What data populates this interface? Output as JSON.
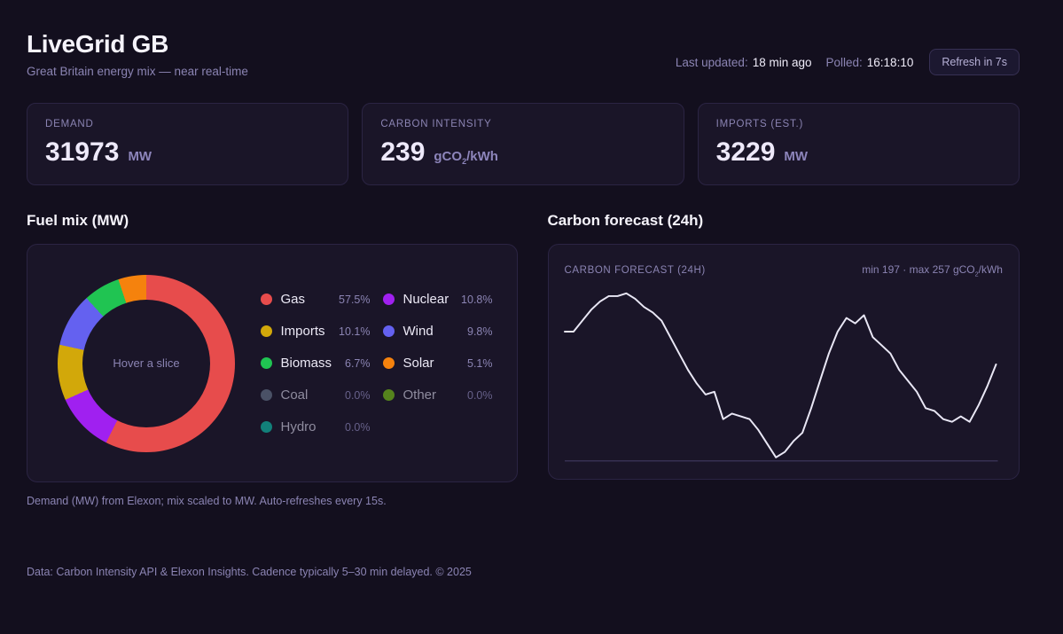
{
  "header": {
    "title": "LiveGrid GB",
    "subtitle": "Great Britain energy mix — near real-time",
    "last_updated_label": "Last updated:",
    "last_updated_value": "18 min ago",
    "polled_label": "Polled:",
    "polled_value": "16:18:10",
    "refresh_button": "Refresh in 7s"
  },
  "stats": [
    {
      "label": "DEMAND",
      "value": "31973",
      "unit_pre": "MW",
      "unit_sub": "",
      "unit_post": ""
    },
    {
      "label": "CARBON INTENSITY",
      "value": "239",
      "unit_pre": "gCO",
      "unit_sub": "2",
      "unit_post": "/kWh"
    },
    {
      "label": "IMPORTS (EST.)",
      "value": "3229",
      "unit_pre": "MW",
      "unit_sub": "",
      "unit_post": ""
    }
  ],
  "chart_data": [
    {
      "type": "pie",
      "title": "Fuel mix (MW)",
      "center_label": "Hover a slice",
      "legend_position": "right",
      "slices": [
        {
          "name": "Gas",
          "value": 57.5,
          "pct_label": "57.5%",
          "color": "#e74c4c",
          "dimmed": false
        },
        {
          "name": "Nuclear",
          "value": 10.8,
          "pct_label": "10.8%",
          "color": "#a020f0",
          "dimmed": false
        },
        {
          "name": "Imports",
          "value": 10.1,
          "pct_label": "10.1%",
          "color": "#d2a80a",
          "dimmed": false
        },
        {
          "name": "Wind",
          "value": 9.8,
          "pct_label": "9.8%",
          "color": "#6461f0",
          "dimmed": false
        },
        {
          "name": "Biomass",
          "value": 6.7,
          "pct_label": "6.7%",
          "color": "#20c452",
          "dimmed": false
        },
        {
          "name": "Solar",
          "value": 5.1,
          "pct_label": "5.1%",
          "color": "#f5820d",
          "dimmed": false
        },
        {
          "name": "Coal",
          "value": 0.0,
          "pct_label": "0.0%",
          "color": "#4a5166",
          "dimmed": true
        },
        {
          "name": "Other",
          "value": 0.0,
          "pct_label": "0.0%",
          "color": "#55831d",
          "dimmed": true
        },
        {
          "name": "Hydro",
          "value": 0.0,
          "pct_label": "0.0%",
          "color": "#12807a",
          "dimmed": true
        }
      ]
    },
    {
      "type": "line",
      "title": "Carbon forecast (24h)",
      "panel_label": "CARBON FORECAST (24H)",
      "annotation_pre": "min 197 · max 257 gCO",
      "annotation_sub": "2",
      "annotation_post": "/kWh",
      "ylim": [
        197,
        257
      ],
      "x_range_hours": 24,
      "grid": false,
      "values": [
        243,
        243,
        247,
        251,
        254,
        256,
        256,
        257,
        255,
        252,
        250,
        247,
        241,
        235,
        229,
        224,
        220,
        221,
        211,
        213,
        212,
        211,
        207,
        202,
        197,
        199,
        203,
        206,
        215,
        225,
        235,
        243,
        248,
        246,
        249,
        241,
        238,
        235,
        229,
        225,
        221,
        215,
        214,
        211,
        210,
        212,
        210,
        216,
        223,
        231
      ]
    }
  ],
  "fuel_mix_caption": "Demand (MW) from Elexon; mix scaled to MW. Auto-refreshes every 15s.",
  "footer": {
    "text": "Data: Carbon Intensity API & Elexon Insights. Cadence typically 5–30 min delayed. © 2025"
  },
  "colors": {
    "background": "#130f1e",
    "card": "#1a1528",
    "border": "#2b2443",
    "muted_text": "#8b84b3",
    "bright_text": "#f0edfa",
    "line_stroke": "#e9e7f5",
    "baseline": "#373052"
  }
}
